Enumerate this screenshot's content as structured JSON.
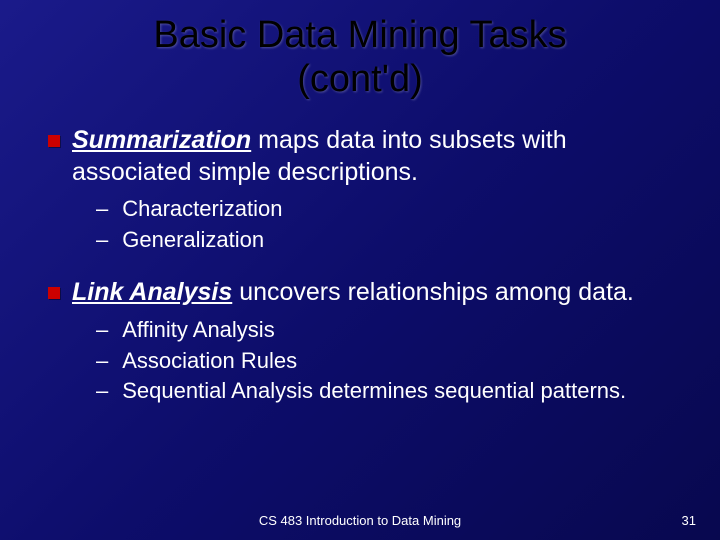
{
  "title_line1": "Basic Data Mining Tasks",
  "title_line2": "(cont'd)",
  "bullets": [
    {
      "lead": "Summarization",
      "rest": " maps data into subsets with associated simple descriptions.",
      "subs": [
        "Characterization",
        "Generalization"
      ]
    },
    {
      "lead": "Link Analysis",
      "rest": " uncovers relationships among data.",
      "subs": [
        "Affinity Analysis",
        "Association Rules",
        "Sequential Analysis determines sequential patterns."
      ]
    }
  ],
  "footer": "CS 483 Introduction to Data Mining",
  "page_number": "31",
  "colors": {
    "bullet": "#cc0000",
    "title": "#000000",
    "body": "#ffffff",
    "bg_start": "#1a1a8a",
    "bg_end": "#08084f"
  }
}
